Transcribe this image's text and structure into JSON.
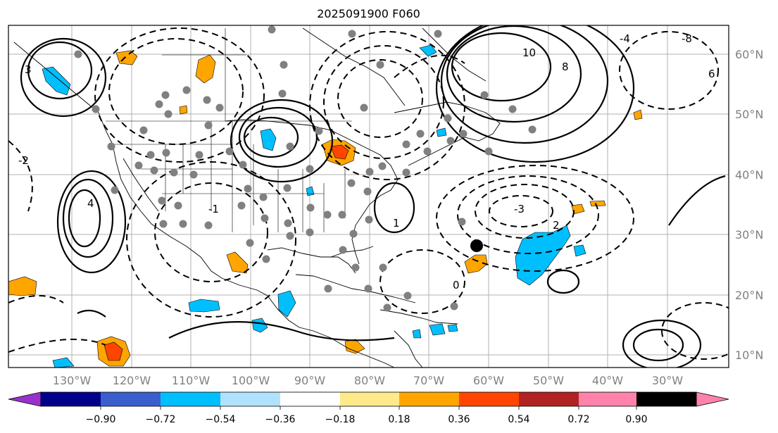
{
  "title": "2025091900 F060",
  "lon_labels": [
    "130°W",
    "120°W",
    "110°W",
    "100°W",
    "90°W",
    "80°W",
    "70°W",
    "60°W",
    "50°W",
    "40°W",
    "30°W"
  ],
  "lat_labels": [
    "60°N",
    "50°N",
    "40°N",
    "30°N",
    "20°N",
    "10°N"
  ],
  "colorbar": {
    "tick_labels": [
      "−0.90",
      "−0.72",
      "−0.54",
      "−0.36",
      "−0.18",
      "0.18",
      "0.36",
      "0.54",
      "0.72",
      "0.90"
    ],
    "colors": [
      "#9932cc",
      "#00008b",
      "#3a5fcd",
      "#00bfff",
      "#b0e2ff",
      "#ffffff",
      "#ffe98a",
      "#ffa500",
      "#ff4500",
      "#b22222",
      "#ff82ab"
    ]
  },
  "contour_labels": [
    "10",
    "8",
    "6",
    "4",
    "3",
    "2",
    "1",
    "0",
    "-1",
    "-2",
    "-3",
    "-4",
    "-8"
  ]
}
